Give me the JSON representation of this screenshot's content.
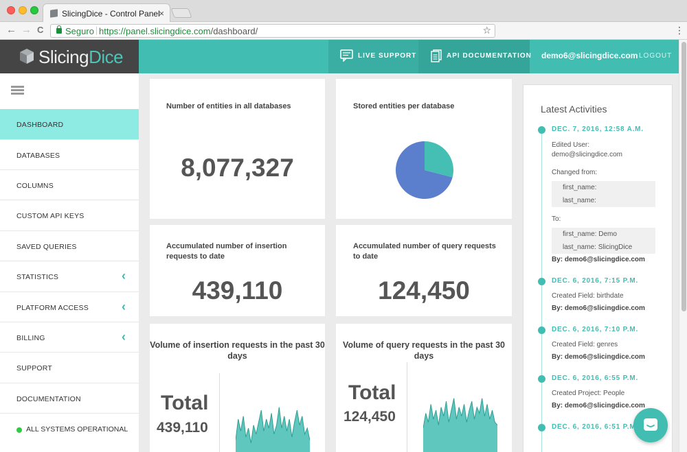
{
  "browser": {
    "tab_title": "SlicingDice - Control Panel",
    "tab_close": "×",
    "secure_label": "Seguro",
    "url_host": "https://panel.slicingdice.com",
    "url_path": "/dashboard/",
    "back_glyph": "←",
    "forward_glyph": "→",
    "reload_glyph": "C",
    "star_glyph": "☆",
    "menu_glyph": "⋮"
  },
  "header": {
    "logo_main": "Slicing",
    "logo_accent": "Dice",
    "live_support": "LIVE SUPPORT",
    "api_docs": "API DOCUMENTATION",
    "user_email": "demo6@slicingdice.com",
    "logout": "LOGOUT"
  },
  "sidebar": {
    "items": [
      {
        "label": "DASHBOARD"
      },
      {
        "label": "DATABASES"
      },
      {
        "label": "COLUMNS"
      },
      {
        "label": "CUSTOM API KEYS"
      },
      {
        "label": "SAVED QUERIES"
      },
      {
        "label": "STATISTICS",
        "chevron": "‹"
      },
      {
        "label": "PLATFORM ACCESS",
        "chevron": "‹"
      },
      {
        "label": "BILLING",
        "chevron": "‹"
      },
      {
        "label": "SUPPORT"
      },
      {
        "label": "DOCUMENTATION"
      }
    ],
    "status": "ALL SYSTEMS OPERATIONAL"
  },
  "cards": {
    "entities_title": "Number of entities in all databases",
    "entities_value": "8,077,327",
    "stored_title": "Stored entities per database",
    "insertion_title_1": "Accumulated number of insertion",
    "insertion_title_2": "requests to date",
    "insertion_value": "439,110",
    "query_title_1": "Accumulated number of query requests",
    "query_title_2": "to date",
    "query_value": "124,450",
    "vol_insert_title_1": "Volume of insertion requests in the past 30",
    "vol_insert_title_2": "days",
    "vol_insert_total_label": "Total",
    "vol_insert_total": "439,110",
    "vol_query_title": "Volume of query requests in the past 30 days",
    "vol_query_total_label": "Total",
    "vol_query_total": "124,450"
  },
  "colors": {
    "accent": "#42bdb2",
    "pie_primary": "#5b7fcd",
    "pie_secondary": "#45bfb4"
  },
  "chart_data": [
    {
      "type": "pie",
      "slices": [
        {
          "value": 0.71
        },
        {
          "value": 0.29
        }
      ]
    },
    {
      "type": "area",
      "x": [
        1,
        2,
        3,
        4,
        5,
        6,
        7,
        8,
        9,
        10,
        11,
        12,
        13,
        14,
        15,
        16,
        17,
        18,
        19,
        20,
        21,
        22,
        23,
        24,
        25,
        26,
        27,
        28,
        29,
        30
      ],
      "values": [
        20,
        55,
        35,
        60,
        25,
        40,
        15,
        45,
        30,
        50,
        70,
        35,
        55,
        40,
        65,
        30,
        45,
        75,
        40,
        60,
        35,
        55,
        25,
        50,
        70,
        45,
        60,
        30,
        40,
        20
      ]
    },
    {
      "type": "area",
      "x": [
        1,
        2,
        3,
        4,
        5,
        6,
        7,
        8,
        9,
        10,
        11,
        12,
        13,
        14,
        15,
        16,
        17,
        18,
        19,
        20,
        21,
        22,
        23,
        24,
        25,
        26,
        27,
        28,
        29,
        30
      ],
      "values": [
        40,
        65,
        50,
        80,
        55,
        70,
        45,
        75,
        60,
        85,
        50,
        70,
        90,
        55,
        75,
        60,
        80,
        50,
        70,
        85,
        55,
        75,
        65,
        90,
        60,
        80,
        55,
        70,
        50,
        45
      ]
    }
  ],
  "activities": {
    "title": "Latest Activities",
    "items": [
      {
        "date": "DEC. 7, 2016, 12:58 A.M.",
        "line1": "Edited User:",
        "line2": "demo@slicingdice.com",
        "changed_from": "Changed from:",
        "from_1": "first_name:",
        "from_2": "last_name:",
        "to": "To:",
        "to_1": "first_name: Demo",
        "to_2": "last_name: SlicingDice",
        "by": "By: demo6@slicingdice.com"
      },
      {
        "date": "DEC. 6, 2016, 7:15 P.M.",
        "text": "Created Field: birthdate",
        "by": "By: demo6@slicingdice.com"
      },
      {
        "date": "DEC. 6, 2016, 7:10 P.M.",
        "text": "Created Field: genres",
        "by": "By: demo6@slicingdice.com"
      },
      {
        "date": "DEC. 6, 2016, 6:55 P.M.",
        "text": "Created Project: People",
        "by": "By: demo6@slicingdice.com"
      },
      {
        "date": "DEC. 6, 2016, 6:51 P.M."
      }
    ]
  }
}
